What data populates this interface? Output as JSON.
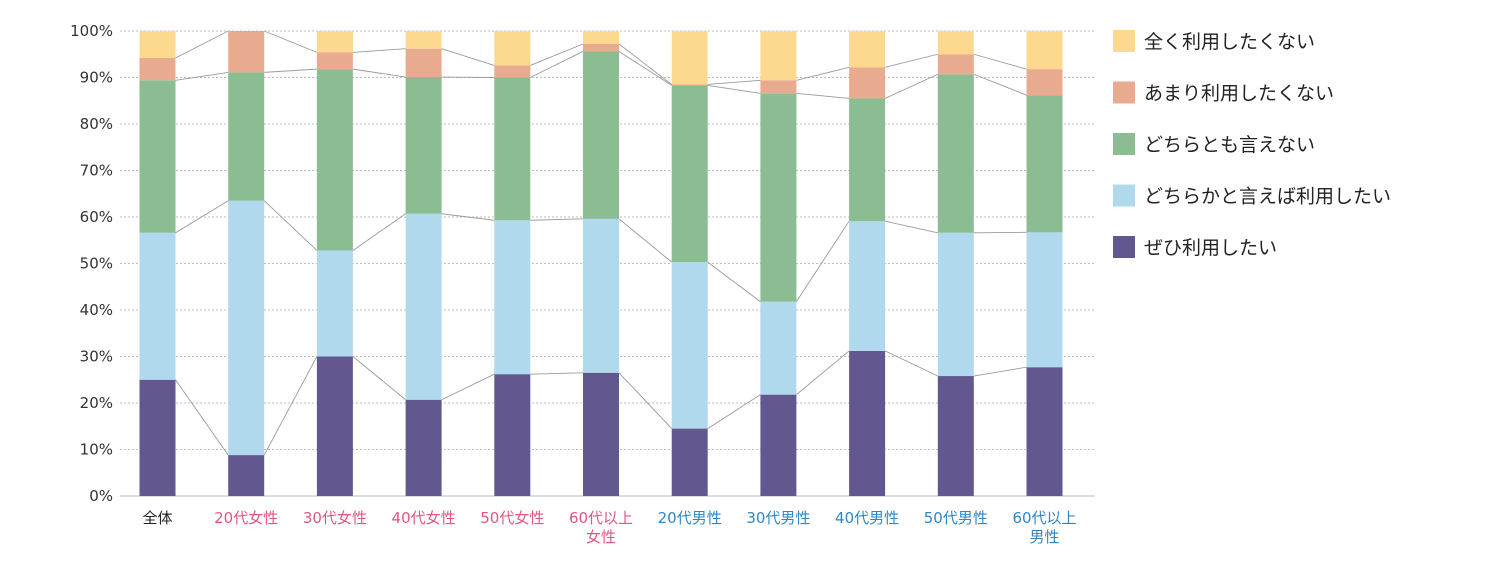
{
  "chart_data": {
    "type": "bar",
    "stacked": true,
    "ylim": [
      0,
      100
    ],
    "yticks": [
      "0%",
      "10%",
      "20%",
      "30%",
      "40%",
      "50%",
      "60%",
      "70%",
      "80%",
      "90%",
      "100%"
    ],
    "grid": true,
    "legend_position": "right",
    "categories": [
      {
        "lines": [
          "全体"
        ],
        "color": "#222222"
      },
      {
        "lines": [
          "20代女性"
        ],
        "color": "#e0577f"
      },
      {
        "lines": [
          "30代女性"
        ],
        "color": "#e0577f"
      },
      {
        "lines": [
          "40代女性"
        ],
        "color": "#e0577f"
      },
      {
        "lines": [
          "50代女性"
        ],
        "color": "#e0577f"
      },
      {
        "lines": [
          "60代以上",
          "女性"
        ],
        "color": "#e0577f"
      },
      {
        "lines": [
          "20代男性"
        ],
        "color": "#2f86c6"
      },
      {
        "lines": [
          "30代男性"
        ],
        "color": "#2f86c6"
      },
      {
        "lines": [
          "40代男性"
        ],
        "color": "#2f86c6"
      },
      {
        "lines": [
          "50代男性"
        ],
        "color": "#2f86c6"
      },
      {
        "lines": [
          "60代以上",
          "男性"
        ],
        "color": "#2f86c6"
      }
    ],
    "series": [
      {
        "name": "ぜひ利用したい",
        "color": "#63578f",
        "values": [
          25.0,
          8.8,
          30.0,
          20.7,
          26.2,
          26.5,
          14.5,
          21.8,
          31.2,
          25.8,
          27.7
        ]
      },
      {
        "name": "どちらかと言えば利用したい",
        "color": "#b1d9ee",
        "values": [
          31.6,
          54.7,
          22.8,
          40.0,
          33.1,
          33.1,
          35.8,
          20.0,
          27.9,
          30.8,
          29.0
        ]
      },
      {
        "name": "どちらとも言えない",
        "color": "#8cbd92",
        "values": [
          32.8,
          27.6,
          39.0,
          29.4,
          30.7,
          36.0,
          38.0,
          44.8,
          26.4,
          34.1,
          29.5
        ]
      },
      {
        "name": "あまり利用したくない",
        "color": "#e8ab8f",
        "values": [
          4.8,
          8.9,
          3.6,
          6.1,
          2.6,
          1.6,
          0.2,
          2.8,
          6.7,
          4.3,
          5.6
        ]
      },
      {
        "name": "全く利用したくない",
        "color": "#fcd98e",
        "values": [
          5.8,
          0.0,
          4.6,
          3.8,
          7.4,
          2.8,
          11.5,
          10.6,
          7.8,
          5.0,
          8.2
        ]
      }
    ]
  }
}
